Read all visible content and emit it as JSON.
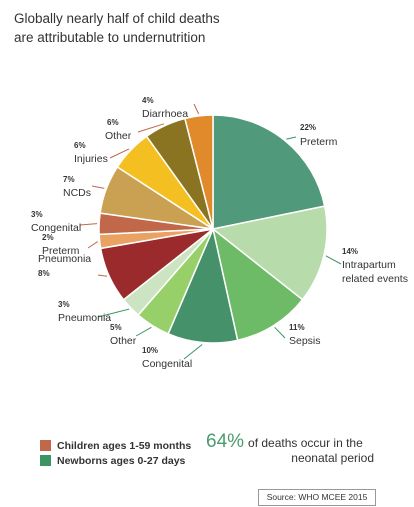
{
  "title": {
    "line1": "Globally nearly half of child deaths",
    "line2": "are attributable to undernutrition"
  },
  "chart_data": {
    "type": "pie",
    "slices": [
      {
        "pct": "22%",
        "value": 22,
        "label": [
          "Preterm"
        ],
        "group": "newborn",
        "color": "#50997a"
      },
      {
        "pct": "14%",
        "value": 14,
        "label": [
          "Intrapartum",
          "related events"
        ],
        "group": "newborn",
        "color": "#b8dbac"
      },
      {
        "pct": "11%",
        "value": 11,
        "label": [
          "Sepsis"
        ],
        "group": "newborn",
        "color": "#6dba67"
      },
      {
        "pct": "10%",
        "value": 10,
        "label": [
          "Congenital"
        ],
        "group": "newborn",
        "color": "#44916a"
      },
      {
        "pct": "5%",
        "value": 5,
        "label": [
          "Other"
        ],
        "group": "newborn",
        "color": "#97cf69"
      },
      {
        "pct": "3%",
        "value": 3,
        "label": [
          "Pneumonia"
        ],
        "group": "newborn",
        "color": "#cde4c3"
      },
      {
        "pct": "8%",
        "value": 8,
        "label": [
          "Pneumonia"
        ],
        "group": "child",
        "color": "#9a2a2c"
      },
      {
        "pct": "2%",
        "value": 2,
        "label": [
          "Preterm"
        ],
        "group": "child",
        "color": "#e9a261"
      },
      {
        "pct": "3%",
        "value": 3,
        "label": [
          "Congenital"
        ],
        "group": "child",
        "color": "#c2684a"
      },
      {
        "pct": "7%",
        "value": 7,
        "label": [
          "NCDs"
        ],
        "group": "child",
        "color": "#caa152"
      },
      {
        "pct": "6%",
        "value": 6,
        "label": [
          "Injuries"
        ],
        "group": "child",
        "color": "#f4c021"
      },
      {
        "pct": "6%",
        "value": 6,
        "label": [
          "Other"
        ],
        "group": "child",
        "color": "#8b7421"
      },
      {
        "pct": "4%",
        "value": 4,
        "label": [
          "Diarrhoea"
        ],
        "group": "child",
        "color": "#e18a2c"
      }
    ]
  },
  "legend": {
    "children": {
      "label": "Children ages 1-59 months",
      "color": "#c2684a"
    },
    "newborns": {
      "label": "Newborns ages 0-27 days",
      "color": "#3a9562"
    }
  },
  "stat": {
    "value": "64%",
    "text1": "of deaths occur in the",
    "text2": "neonatal period"
  },
  "source": "Source: WHO MCEE 2015"
}
